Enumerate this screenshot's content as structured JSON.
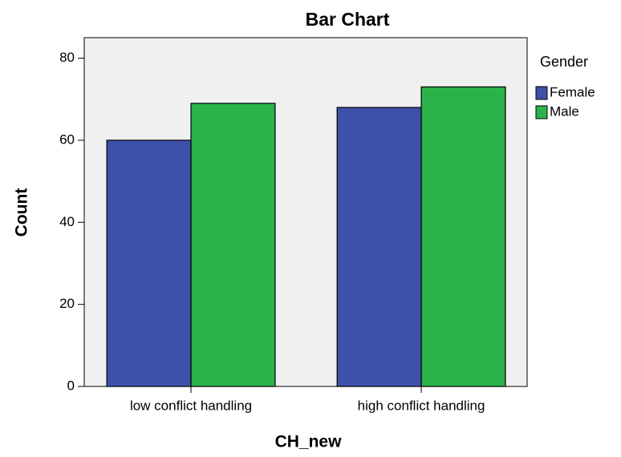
{
  "chart_data": {
    "type": "bar",
    "title": "Bar Chart",
    "x_label": "CH_new",
    "y_label": "Count",
    "categories": [
      "low conflict handling",
      "high conflict handling"
    ],
    "legend_title": "Gender",
    "series": [
      {
        "name": "Female",
        "color": "#3e51a8",
        "values": [
          60,
          68
        ]
      },
      {
        "name": "Male",
        "color": "#2ab34a",
        "values": [
          69,
          73
        ]
      }
    ],
    "ylim": [
      0,
      85
    ],
    "yticks": [
      0,
      20,
      40,
      60,
      80
    ],
    "legend": "right"
  }
}
